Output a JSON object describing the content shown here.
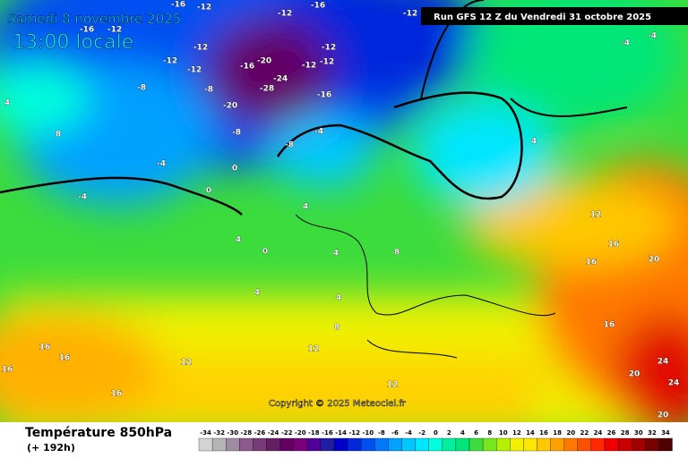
{
  "header": {
    "date": "Samedi 8 novembre 2025",
    "time": "13:00 locale",
    "run": "Run GFS 12 Z du Vendredi 31 octobre 2025"
  },
  "footer": {
    "title": "Température 850hPa",
    "subtitle": "(+ 192h)",
    "copyright": "Copyright © 2025 Meteociel.fr"
  },
  "legend": {
    "ticks": [
      -34,
      -32,
      -30,
      -28,
      -26,
      -24,
      -22,
      -20,
      -18,
      -16,
      -14,
      -12,
      -10,
      -8,
      -6,
      -4,
      -2,
      0,
      2,
      4,
      6,
      8,
      10,
      12,
      14,
      16,
      18,
      20,
      22,
      24,
      26,
      28,
      30,
      32,
      34
    ],
    "colors": [
      "#d3d3d3",
      "#b4b4b4",
      "#a08ca0",
      "#8c5a8c",
      "#783c78",
      "#641e64",
      "#640064",
      "#780078",
      "#500096",
      "#1e1ea0",
      "#0000c8",
      "#0028dc",
      "#0050f0",
      "#0078ff",
      "#00a0ff",
      "#00c8ff",
      "#00e6ff",
      "#00ffdc",
      "#00f0a0",
      "#00e678",
      "#3cdc3c",
      "#78e61e",
      "#b4f000",
      "#f0f000",
      "#ffe600",
      "#ffc800",
      "#ffa000",
      "#ff7800",
      "#ff5000",
      "#ff2800",
      "#f00000",
      "#c80000",
      "#a00000",
      "#780000",
      "#500000"
    ]
  },
  "map_labels": [
    -12,
    -16,
    -12,
    -16,
    -12,
    -16,
    -12,
    -12,
    -12,
    -12,
    -16,
    -20,
    -24,
    -28,
    -12,
    -12,
    -12,
    -16,
    -8,
    -8,
    -20,
    -8,
    -8,
    -4,
    -4,
    -4,
    0,
    0,
    0,
    4,
    4,
    4,
    4,
    8,
    8,
    12,
    12,
    16,
    16,
    16,
    16,
    12,
    16,
    20,
    20,
    24,
    24,
    20,
    12,
    16,
    -4,
    -4,
    4,
    4,
    8,
    4,
    16
  ]
}
